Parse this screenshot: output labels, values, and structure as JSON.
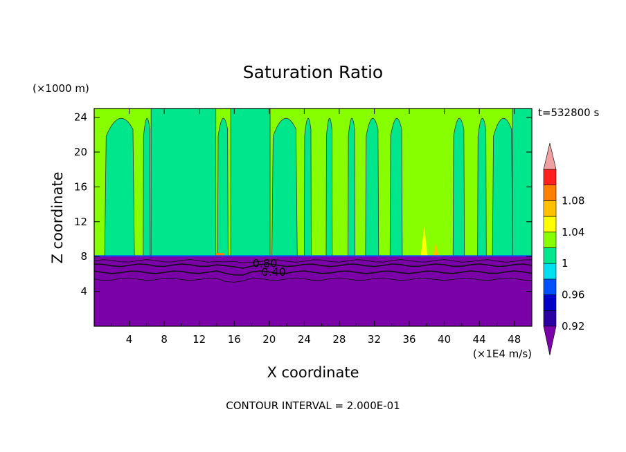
{
  "chart_data": {
    "type": "heatmap",
    "title": "Saturation Ratio",
    "xlabel": "X coordinate",
    "ylabel": "Z coordinate",
    "x_unit": "(×1E4 m/s)",
    "y_unit": "(×1000 m)",
    "time_label": "t=532800 s",
    "footer": "CONTOUR INTERVAL = 2.000E-01",
    "xlim": [
      0,
      50
    ],
    "ylim": [
      0,
      25
    ],
    "x_ticks": [
      "4",
      "8",
      "12",
      "16",
      "20",
      "24",
      "28",
      "32",
      "36",
      "40",
      "44",
      "48"
    ],
    "y_ticks": [
      "4",
      "8",
      "12",
      "16",
      "20",
      "24"
    ],
    "grid": false,
    "contour_labels": [
      {
        "text": "0.80",
        "x": 19.5,
        "z": 7.2
      },
      {
        "text": "0.40",
        "x": 20.5,
        "z": 6.2
      }
    ],
    "colorbar": {
      "placement": "right",
      "tick_labels": [
        "0.92",
        "0.96",
        "1",
        "1.04",
        "1.08"
      ],
      "levels": [
        0.92,
        0.94,
        0.96,
        0.98,
        1.0,
        1.02,
        1.04,
        1.06,
        1.08,
        1.1
      ],
      "colors": [
        "#2b00a0",
        "#0000c8",
        "#0050ff",
        "#00e0f0",
        "#00e68c",
        "#88ff00",
        "#ffff00",
        "#ffc000",
        "#ff8000",
        "#ff2020"
      ],
      "under_color": "#7a00a8",
      "over_color": "#f0a0a0"
    },
    "fields": {
      "lower_layer": {
        "z_top": 8,
        "color": "#7a00a8"
      },
      "upper_layer": {
        "z_bottom": 8,
        "z_top": 25
      }
    }
  }
}
